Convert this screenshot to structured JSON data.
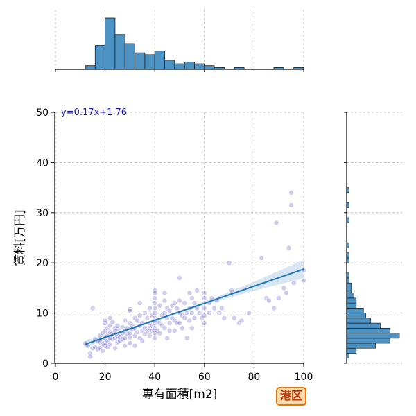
{
  "chart_data": {
    "type": "scatter",
    "xlabel": "専有面積[m2]",
    "ylabel": "賃料[万円]",
    "xlim": [
      0,
      100
    ],
    "ylim": [
      0,
      50
    ],
    "xticks": [
      "0",
      "20",
      "40",
      "60",
      "80",
      "100"
    ],
    "yticks": [
      "0",
      "10",
      "20",
      "30",
      "40",
      "50"
    ],
    "grid": true,
    "annotation": "y=0.17x+1.76",
    "badge": "港区",
    "regression": {
      "slope": 0.17,
      "intercept": 1.76
    },
    "colors": {
      "points": "#2a1fb8",
      "regression_line": "#1f77b4",
      "confidence_band": "#bcd5ea",
      "histogram": "#4c92c3",
      "annotation_text": "#1a1ab0",
      "grid": "#b0b0b0"
    },
    "points": [
      [
        12,
        4.0
      ],
      [
        13,
        3.5
      ],
      [
        14,
        2.0
      ],
      [
        14,
        1.3
      ],
      [
        15,
        3.0
      ],
      [
        15,
        11.0
      ],
      [
        16,
        4.8
      ],
      [
        16,
        3.2
      ],
      [
        17,
        4.5
      ],
      [
        17,
        2.8
      ],
      [
        18,
        3.0
      ],
      [
        18,
        5.5
      ],
      [
        18,
        4.2
      ],
      [
        19,
        3.8
      ],
      [
        19,
        6.0
      ],
      [
        19,
        2.5
      ],
      [
        20,
        8.0
      ],
      [
        20,
        6.5
      ],
      [
        20,
        5.0
      ],
      [
        20,
        3.5
      ],
      [
        20,
        8.5
      ],
      [
        20,
        4.0
      ],
      [
        21,
        7.0
      ],
      [
        21,
        5.5
      ],
      [
        21,
        4.5
      ],
      [
        21,
        3.2
      ],
      [
        22,
        9.0
      ],
      [
        22,
        6.2
      ],
      [
        22,
        5.0
      ],
      [
        22,
        7.5
      ],
      [
        22,
        3.8
      ],
      [
        23,
        8.2
      ],
      [
        23,
        6.0
      ],
      [
        23,
        4.8
      ],
      [
        23,
        5.5
      ],
      [
        24,
        7.0
      ],
      [
        24,
        5.0
      ],
      [
        24,
        6.5
      ],
      [
        24,
        3.0
      ],
      [
        25,
        6.8
      ],
      [
        25,
        5.5
      ],
      [
        25,
        4.2
      ],
      [
        25,
        7.5
      ],
      [
        26,
        6.0
      ],
      [
        26,
        4.5
      ],
      [
        26,
        5.2
      ],
      [
        27,
        7.2
      ],
      [
        27,
        6.0
      ],
      [
        27,
        4.8
      ],
      [
        28,
        8.5
      ],
      [
        28,
        6.5
      ],
      [
        28,
        5.0
      ],
      [
        28,
        3.5
      ],
      [
        29,
        7.0
      ],
      [
        29,
        5.8
      ],
      [
        30,
        10.8
      ],
      [
        30,
        10.5
      ],
      [
        30,
        8.0
      ],
      [
        30,
        6.0
      ],
      [
        30,
        5.2
      ],
      [
        30,
        4.0
      ],
      [
        31,
        7.5
      ],
      [
        31,
        6.8
      ],
      [
        32,
        9.0
      ],
      [
        32,
        7.0
      ],
      [
        32,
        5.5
      ],
      [
        32,
        3.5
      ],
      [
        33,
        8.5
      ],
      [
        33,
        6.2
      ],
      [
        34,
        12.0
      ],
      [
        34,
        9.5
      ],
      [
        34,
        7.5
      ],
      [
        34,
        5.0
      ],
      [
        35,
        8.0
      ],
      [
        35,
        6.5
      ],
      [
        35,
        4.5
      ],
      [
        36,
        10.0
      ],
      [
        36,
        7.0
      ],
      [
        36,
        5.8
      ],
      [
        37,
        9.0
      ],
      [
        37,
        6.5
      ],
      [
        38,
        11.0
      ],
      [
        38,
        8.0
      ],
      [
        38,
        7.0
      ],
      [
        38,
        5.5
      ],
      [
        39,
        9.5
      ],
      [
        39,
        7.5
      ],
      [
        39,
        6.5
      ],
      [
        40,
        14.5
      ],
      [
        40,
        14.0
      ],
      [
        40,
        13.0
      ],
      [
        40,
        12.0
      ],
      [
        40,
        11.0
      ],
      [
        40,
        10.0
      ],
      [
        40,
        9.0
      ],
      [
        40,
        8.0
      ],
      [
        40,
        7.0
      ],
      [
        40,
        6.0
      ],
      [
        40,
        5.0
      ],
      [
        41,
        8.5
      ],
      [
        41,
        6.5
      ],
      [
        42,
        11.5
      ],
      [
        42,
        8.0
      ],
      [
        42,
        6.0
      ],
      [
        43,
        9.5
      ],
      [
        43,
        7.5
      ],
      [
        44,
        14.0
      ],
      [
        44,
        12.5
      ],
      [
        44,
        10.0
      ],
      [
        44,
        7.0
      ],
      [
        45,
        11.0
      ],
      [
        45,
        9.0
      ],
      [
        45,
        5.0
      ],
      [
        46,
        10.5
      ],
      [
        46,
        8.0
      ],
      [
        46,
        6.5
      ],
      [
        47,
        11.5
      ],
      [
        47,
        9.0
      ],
      [
        48,
        12.0
      ],
      [
        48,
        8.5
      ],
      [
        48,
        6.5
      ],
      [
        49,
        11.0
      ],
      [
        49,
        8.0
      ],
      [
        50,
        17.0
      ],
      [
        50,
        12.5
      ],
      [
        50,
        10.0
      ],
      [
        50,
        8.0
      ],
      [
        51,
        9.5
      ],
      [
        51,
        7.0
      ],
      [
        52,
        12.0
      ],
      [
        52,
        9.0
      ],
      [
        53,
        10.0
      ],
      [
        53,
        5.0
      ],
      [
        54,
        14.0
      ],
      [
        54,
        11.0
      ],
      [
        54,
        8.5
      ],
      [
        55,
        13.0
      ],
      [
        55,
        10.0
      ],
      [
        55,
        7.0
      ],
      [
        56,
        12.0
      ],
      [
        56,
        9.0
      ],
      [
        57,
        14.5
      ],
      [
        57,
        11.0
      ],
      [
        58,
        10.0
      ],
      [
        59,
        9.0
      ],
      [
        60,
        14.0
      ],
      [
        60,
        13.0
      ],
      [
        60,
        11.0
      ],
      [
        60,
        9.5
      ],
      [
        60,
        8.0
      ],
      [
        62,
        12.0
      ],
      [
        62,
        10.0
      ],
      [
        63,
        13.0
      ],
      [
        64,
        11.0
      ],
      [
        65,
        12.5
      ],
      [
        66,
        10.0
      ],
      [
        67,
        11.0
      ],
      [
        68,
        9.0
      ],
      [
        70,
        20.0
      ],
      [
        71,
        14.5
      ],
      [
        72,
        9.0
      ],
      [
        74,
        8.0
      ],
      [
        75,
        8.5
      ],
      [
        78,
        10.0
      ],
      [
        83,
        21.0
      ],
      [
        85,
        13.0
      ],
      [
        86,
        12.5
      ],
      [
        88,
        11.0
      ],
      [
        89,
        28.0
      ],
      [
        90,
        13.0
      ],
      [
        92,
        15.0
      ],
      [
        93,
        14.0
      ],
      [
        94,
        23.0
      ],
      [
        95,
        34.0
      ],
      [
        95,
        31.5
      ],
      [
        96,
        16.0
      ],
      [
        100,
        16.5
      ],
      [
        100,
        18.5
      ]
    ],
    "marginal_x_histogram": {
      "bins": [
        0,
        4,
        8,
        12,
        16,
        20,
        24,
        28,
        32,
        36,
        40,
        44,
        48,
        52,
        56,
        60,
        64,
        68,
        72,
        76,
        80,
        84,
        88,
        92,
        96,
        100
      ],
      "counts": [
        0,
        0,
        0,
        2,
        13,
        28,
        19,
        14,
        9,
        8,
        10,
        5,
        3,
        4,
        3,
        2,
        1,
        0,
        1,
        0,
        0,
        0,
        1,
        0,
        1
      ]
    },
    "marginal_y_histogram": {
      "bins": [
        0,
        1,
        2,
        3,
        4,
        5,
        6,
        7,
        8,
        9,
        10,
        11,
        12,
        13,
        14,
        15,
        16,
        17,
        18,
        19,
        20,
        21,
        22,
        23,
        24,
        25,
        26,
        27,
        28,
        29,
        30,
        31,
        32,
        33,
        34,
        35
      ],
      "counts": [
        0,
        1,
        4,
        12,
        18,
        22,
        18,
        14,
        10,
        8,
        7,
        4,
        4,
        3,
        2,
        2,
        1,
        1,
        0,
        0,
        1,
        1,
        0,
        1,
        0,
        0,
        0,
        0,
        1,
        0,
        0,
        1,
        0,
        0,
        1
      ]
    }
  }
}
